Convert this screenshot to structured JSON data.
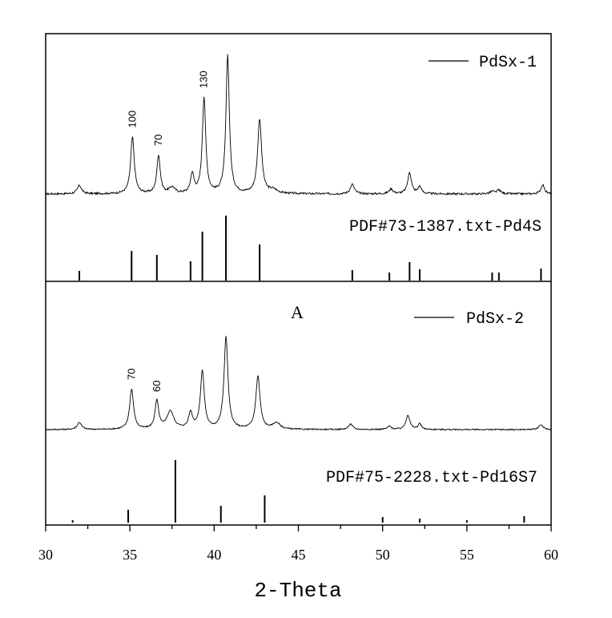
{
  "chart_data": {
    "type": "line",
    "xlabel": "2-Theta",
    "xlim": [
      30,
      60
    ],
    "xticks": [
      30,
      35,
      40,
      45,
      50,
      55,
      60
    ],
    "x_tick_labels": [
      "30",
      "35",
      "40",
      "45",
      "50",
      "55",
      "60"
    ],
    "panel_letter": "A",
    "panels": [
      {
        "series": {
          "name": "PdSx-1",
          "baseline": 0,
          "noise": 0.8,
          "peaks": [
            {
              "x": 32.0,
              "h": 7,
              "w": 0.15
            },
            {
              "x": 35.15,
              "h": 47,
              "w": 0.13
            },
            {
              "x": 36.7,
              "h": 32,
              "w": 0.12
            },
            {
              "x": 37.5,
              "h": 5,
              "w": 0.2
            },
            {
              "x": 38.7,
              "h": 16,
              "w": 0.12
            },
            {
              "x": 39.4,
              "h": 80,
              "w": 0.12
            },
            {
              "x": 40.8,
              "h": 115,
              "w": 0.12
            },
            {
              "x": 42.7,
              "h": 62,
              "w": 0.14
            },
            {
              "x": 43.5,
              "h": 3,
              "w": 0.3
            },
            {
              "x": 48.2,
              "h": 8,
              "w": 0.14
            },
            {
              "x": 50.5,
              "h": 4,
              "w": 0.14
            },
            {
              "x": 51.6,
              "h": 18,
              "w": 0.13
            },
            {
              "x": 52.2,
              "h": 6,
              "w": 0.12
            },
            {
              "x": 56.5,
              "h": 2,
              "w": 0.15
            },
            {
              "x": 56.9,
              "h": 3,
              "w": 0.15
            },
            {
              "x": 59.5,
              "h": 8,
              "w": 0.12
            }
          ]
        },
        "annotations": [
          {
            "x": 35.15,
            "text": "100"
          },
          {
            "x": 36.7,
            "text": "70"
          },
          {
            "x": 39.4,
            "text": "130"
          }
        ],
        "reference": {
          "name": "PDF#73-1387.txt-Pd4S",
          "sticks": [
            {
              "x": 32.0,
              "v": 12
            },
            {
              "x": 35.1,
              "v": 37
            },
            {
              "x": 36.6,
              "v": 32
            },
            {
              "x": 38.6,
              "v": 24
            },
            {
              "x": 39.3,
              "v": 61
            },
            {
              "x": 40.7,
              "v": 81
            },
            {
              "x": 42.7,
              "v": 45
            },
            {
              "x": 48.2,
              "v": 13
            },
            {
              "x": 50.4,
              "v": 10
            },
            {
              "x": 51.6,
              "v": 23
            },
            {
              "x": 52.2,
              "v": 14
            },
            {
              "x": 56.5,
              "v": 10
            },
            {
              "x": 56.9,
              "v": 10
            },
            {
              "x": 59.4,
              "v": 15
            }
          ]
        }
      },
      {
        "series": {
          "name": "PdSx-2",
          "baseline": 0,
          "noise": 0.8,
          "peaks": [
            {
              "x": 32.0,
              "h": 9,
              "w": 0.15
            },
            {
              "x": 35.1,
              "h": 50,
              "w": 0.14
            },
            {
              "x": 36.6,
              "h": 35,
              "w": 0.13
            },
            {
              "x": 37.4,
              "h": 22,
              "w": 0.25
            },
            {
              "x": 38.6,
              "h": 20,
              "w": 0.14
            },
            {
              "x": 39.3,
              "h": 72,
              "w": 0.14
            },
            {
              "x": 40.7,
              "h": 115,
              "w": 0.14
            },
            {
              "x": 42.6,
              "h": 66,
              "w": 0.15
            },
            {
              "x": 43.7,
              "h": 8,
              "w": 0.25
            },
            {
              "x": 48.1,
              "h": 7,
              "w": 0.14
            },
            {
              "x": 50.4,
              "h": 4,
              "w": 0.14
            },
            {
              "x": 51.5,
              "h": 18,
              "w": 0.14
            },
            {
              "x": 52.2,
              "h": 7,
              "w": 0.12
            },
            {
              "x": 59.4,
              "h": 6,
              "w": 0.15
            }
          ]
        },
        "annotations": [
          {
            "x": 35.1,
            "text": "70"
          },
          {
            "x": 36.6,
            "text": "60"
          }
        ],
        "reference": {
          "name": "PDF#75-2228.txt-Pd16S7",
          "sticks": [
            {
              "x": 31.6,
              "v": 3
            },
            {
              "x": 34.9,
              "v": 16
            },
            {
              "x": 37.7,
              "v": 78
            },
            {
              "x": 40.4,
              "v": 21
            },
            {
              "x": 43.0,
              "v": 34
            },
            {
              "x": 50.0,
              "v": 7
            },
            {
              "x": 52.2,
              "v": 5
            },
            {
              "x": 55.0,
              "v": 3
            },
            {
              "x": 58.4,
              "v": 8
            }
          ]
        }
      }
    ]
  }
}
